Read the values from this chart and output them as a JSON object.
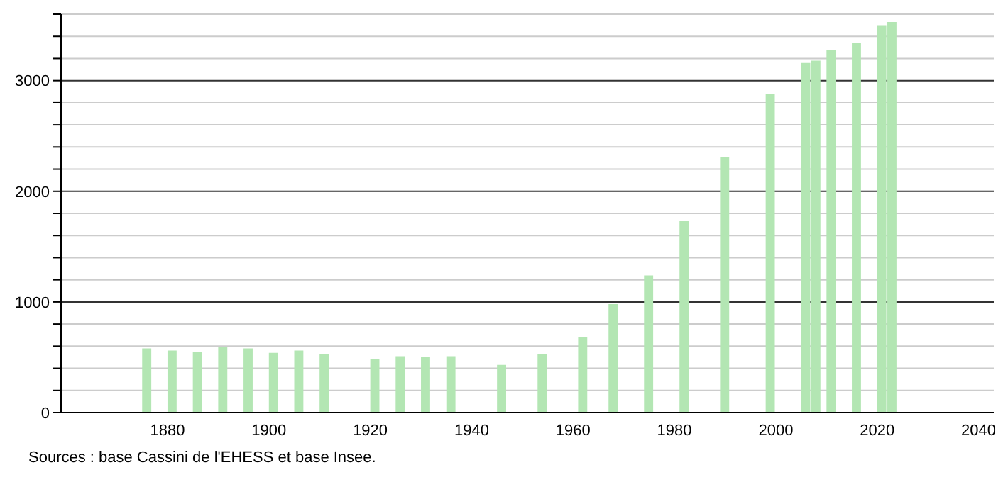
{
  "chart_data": {
    "type": "bar",
    "x": [
      1876,
      1881,
      1886,
      1891,
      1896,
      1901,
      1906,
      1911,
      1921,
      1926,
      1931,
      1936,
      1946,
      1954,
      1962,
      1968,
      1975,
      1982,
      1990,
      1999,
      2006,
      2008,
      2011,
      2016,
      2021,
      2023
    ],
    "values": [
      580,
      560,
      550,
      590,
      580,
      540,
      560,
      530,
      480,
      510,
      500,
      510,
      430,
      530,
      680,
      980,
      1240,
      1730,
      2310,
      2880,
      3160,
      3180,
      3280,
      3340,
      3500,
      3530
    ],
    "color": "#b3e6b3",
    "xlim": [
      1859,
      2043
    ],
    "xticks": [
      1880,
      1900,
      1920,
      1940,
      1960,
      1980,
      2000,
      2020,
      2040
    ],
    "ylim": [
      0,
      3600
    ],
    "yticks": [
      0,
      {
        "value": 200,
        "label": null
      },
      {
        "value": 400,
        "label": null
      },
      {
        "value": 600,
        "label": null
      },
      {
        "value": 800,
        "label": null
      },
      1000,
      {
        "value": 1200,
        "label": null
      },
      {
        "value": 1400,
        "label": null
      },
      {
        "value": 1600,
        "label": null
      },
      {
        "value": 1800,
        "label": null
      },
      2000,
      {
        "value": 2200,
        "label": null
      },
      {
        "value": 2400,
        "label": null
      },
      {
        "value": 2600,
        "label": null
      },
      {
        "value": 2800,
        "label": null
      },
      3000,
      {
        "value": 3200,
        "label": null
      },
      {
        "value": 3400,
        "label": null
      },
      {
        "value": 3600,
        "label": null
      }
    ],
    "grid": "y",
    "annotations": [
      "Sources : base Cassini de l'EHESS et base Insee."
    ]
  }
}
